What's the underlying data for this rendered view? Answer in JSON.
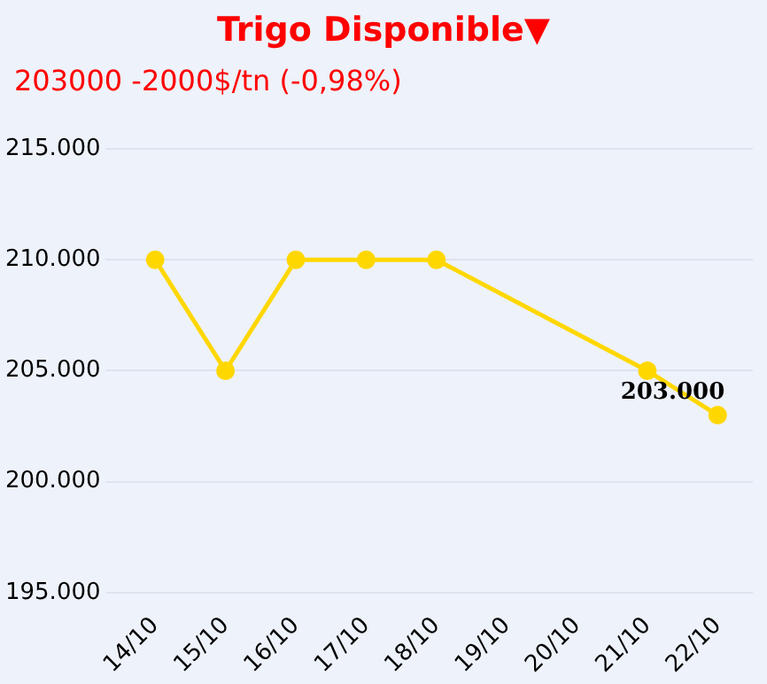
{
  "chart_data": {
    "type": "line",
    "title": "Trigo Disponible▼",
    "subtitle": "203000 -2000$/tn (-0,98%)",
    "categories": [
      "14/10",
      "15/10",
      "16/10",
      "17/10",
      "18/10",
      "19/10",
      "20/10",
      "21/10",
      "22/10"
    ],
    "series": [
      {
        "color": "#ffd700",
        "values": [
          210000,
          205000,
          210000,
          210000,
          210000,
          null,
          null,
          205000,
          203000
        ],
        "value_labels": [
          null,
          null,
          null,
          null,
          null,
          null,
          null,
          null,
          "203.000"
        ]
      }
    ],
    "ylim": [
      195000,
      215000
    ],
    "yticks": [
      {
        "value": 195000,
        "label": "195.000"
      },
      {
        "value": 200000,
        "label": "200.000"
      },
      {
        "value": 205000,
        "label": "205.000"
      },
      {
        "value": 210000,
        "label": "210.000"
      },
      {
        "value": 215000,
        "label": "215.000"
      }
    ],
    "grid": "y",
    "legend": false,
    "marker": "circle",
    "line_style": "solid"
  }
}
